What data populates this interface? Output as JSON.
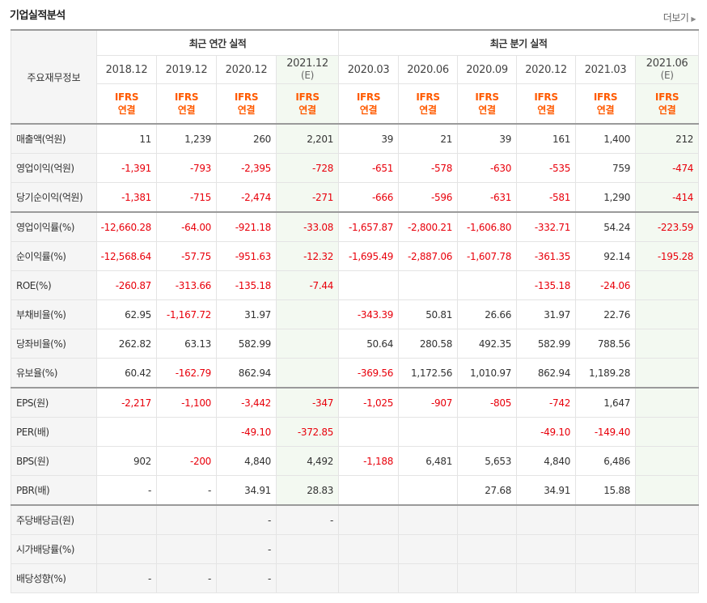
{
  "title": "기업실적분석",
  "more_label": "더보기",
  "corner_label": "주요재무정보",
  "groups": {
    "annual": "최근 연간 실적",
    "quarterly": "최근 분기 실적"
  },
  "periods": [
    {
      "label": "2018.12",
      "est": ""
    },
    {
      "label": "2019.12",
      "est": ""
    },
    {
      "label": "2020.12",
      "est": ""
    },
    {
      "label": "2021.12",
      "est": "(E)"
    },
    {
      "label": "2020.03",
      "est": ""
    },
    {
      "label": "2020.06",
      "est": ""
    },
    {
      "label": "2020.09",
      "est": ""
    },
    {
      "label": "2020.12",
      "est": ""
    },
    {
      "label": "2021.03",
      "est": ""
    },
    {
      "label": "2021.06",
      "est": "(E)"
    }
  ],
  "ifrs": {
    "line1": "IFRS",
    "line2": "연결"
  },
  "rows": [
    {
      "label": "매출액(억원)",
      "values": [
        "11",
        "1,239",
        "260",
        "2,201",
        "39",
        "21",
        "39",
        "161",
        "1,400",
        "212"
      ]
    },
    {
      "label": "영업이익(억원)",
      "values": [
        "-1,391",
        "-793",
        "-2,395",
        "-728",
        "-651",
        "-578",
        "-630",
        "-535",
        "759",
        "-474"
      ]
    },
    {
      "label": "당기순이익(억원)",
      "values": [
        "-1,381",
        "-715",
        "-2,474",
        "-271",
        "-666",
        "-596",
        "-631",
        "-581",
        "1,290",
        "-414"
      ]
    },
    {
      "label": "영업이익률(%)",
      "values": [
        "-12,660.28",
        "-64.00",
        "-921.18",
        "-33.08",
        "-1,657.87",
        "-2,800.21",
        "-1,606.80",
        "-332.71",
        "54.24",
        "-223.59"
      ]
    },
    {
      "label": "순이익률(%)",
      "values": [
        "-12,568.64",
        "-57.75",
        "-951.63",
        "-12.32",
        "-1,695.49",
        "-2,887.06",
        "-1,607.78",
        "-361.35",
        "92.14",
        "-195.28"
      ]
    },
    {
      "label": "ROE(%)",
      "values": [
        "-260.87",
        "-313.66",
        "-135.18",
        "-7.44",
        "",
        "",
        "",
        "-135.18",
        "-24.06",
        ""
      ]
    },
    {
      "label": "부채비율(%)",
      "values": [
        "62.95",
        "-1,167.72",
        "31.97",
        "",
        "-343.39",
        "50.81",
        "26.66",
        "31.97",
        "22.76",
        ""
      ]
    },
    {
      "label": "당좌비율(%)",
      "values": [
        "262.82",
        "63.13",
        "582.99",
        "",
        "50.64",
        "280.58",
        "492.35",
        "582.99",
        "788.56",
        ""
      ]
    },
    {
      "label": "유보율(%)",
      "values": [
        "60.42",
        "-162.79",
        "862.94",
        "",
        "-369.56",
        "1,172.56",
        "1,010.97",
        "862.94",
        "1,189.28",
        ""
      ]
    },
    {
      "label": "EPS(원)",
      "values": [
        "-2,217",
        "-1,100",
        "-3,442",
        "-347",
        "-1,025",
        "-907",
        "-805",
        "-742",
        "1,647",
        ""
      ]
    },
    {
      "label": "PER(배)",
      "values": [
        "",
        "",
        "-49.10",
        "-372.85",
        "",
        "",
        "",
        "-49.10",
        "-149.40",
        ""
      ]
    },
    {
      "label": "BPS(원)",
      "values": [
        "902",
        "-200",
        "4,840",
        "4,492",
        "-1,188",
        "6,481",
        "5,653",
        "4,840",
        "6,486",
        ""
      ]
    },
    {
      "label": "PBR(배)",
      "values": [
        "-",
        "-",
        "34.91",
        "28.83",
        "",
        "",
        "27.68",
        "34.91",
        "15.88",
        ""
      ]
    },
    {
      "label": "주당배당금(원)",
      "values": [
        "",
        "",
        "-",
        "-",
        "",
        "",
        "",
        "",
        "",
        ""
      ]
    },
    {
      "label": "시가배당률(%)",
      "values": [
        "",
        "",
        "-",
        "",
        "",
        "",
        "",
        "",
        "",
        ""
      ]
    },
    {
      "label": "배당성향(%)",
      "values": [
        "-",
        "-",
        "-",
        "",
        "",
        "",
        "",
        "",
        "",
        ""
      ]
    }
  ]
}
